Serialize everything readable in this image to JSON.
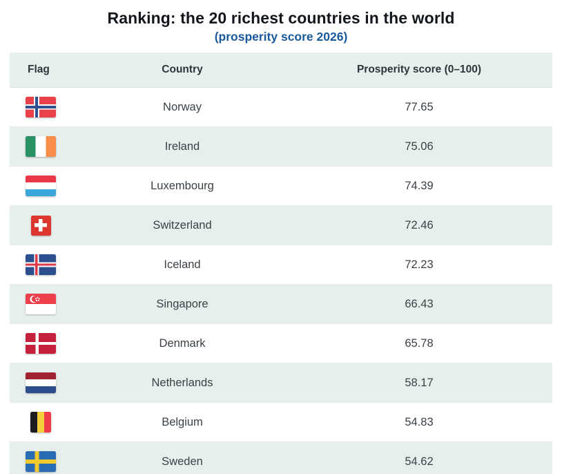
{
  "chart_data": {
    "type": "table",
    "title": "Ranking: the 20 richest countries in the world",
    "subtitle": "(prosperity score 2026)",
    "columns": [
      "Flag",
      "Country",
      "Prosperity score (0–100)"
    ],
    "rows": [
      {
        "flag": "norway",
        "country": "Norway",
        "score": 77.65
      },
      {
        "flag": "ireland",
        "country": "Ireland",
        "score": 75.06
      },
      {
        "flag": "luxembourg",
        "country": "Luxembourg",
        "score": 74.39
      },
      {
        "flag": "switzerland",
        "country": "Switzerland",
        "score": 72.46
      },
      {
        "flag": "iceland",
        "country": "Iceland",
        "score": 72.23
      },
      {
        "flag": "singapore",
        "country": "Singapore",
        "score": 66.43
      },
      {
        "flag": "denmark",
        "country": "Denmark",
        "score": 65.78
      },
      {
        "flag": "netherlands",
        "country": "Netherlands",
        "score": 58.17
      },
      {
        "flag": "belgium",
        "country": "Belgium",
        "score": 54.83
      },
      {
        "flag": "sweden",
        "country": "Sweden",
        "score": 54.62
      }
    ],
    "layout": {
      "striped": true,
      "legend": "none",
      "grid": "row-separators"
    }
  },
  "colors": {
    "title_text": "#13171b",
    "subtitle_blue": "#1a5a9c",
    "header_bg": "#e7efec",
    "alt_row_bg": "#e7efec",
    "body_text": "#3a4046"
  }
}
